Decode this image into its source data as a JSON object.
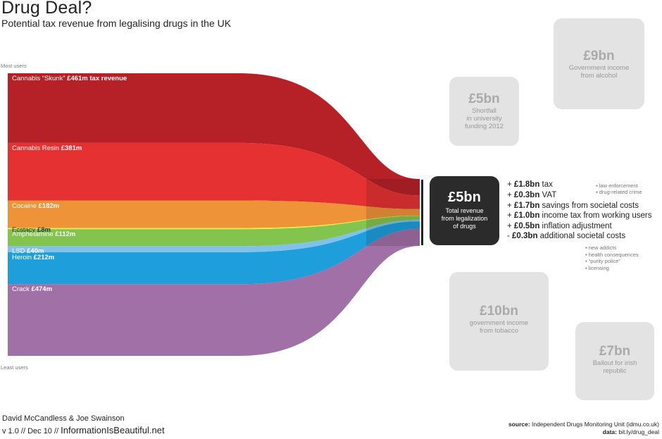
{
  "header": {
    "title": "Drug Deal?",
    "subtitle": "Potential tax revenue from legalising drugs in the UK"
  },
  "axis": {
    "top_label": "Most users",
    "bottom_label": "Least users"
  },
  "chart_data": {
    "type": "sankey",
    "flows": [
      {
        "label_pre": "Cannabis “Skunk” ",
        "label_bold": "£461m tax revenue",
        "value": 461,
        "color": "#b01018"
      },
      {
        "label_pre": "Cannabis Resin ",
        "label_bold": "£381m",
        "value": 381,
        "color": "#e42124"
      },
      {
        "label_pre": "Cocaine ",
        "label_bold": "£182m",
        "value": 182,
        "color": "#ee8b2a"
      },
      {
        "label_pre": "Ecstacy ",
        "label_bold": "£8m",
        "value": 8,
        "color": "#f5e62d"
      },
      {
        "label_pre": "Amphetamine ",
        "label_bold": "£112m",
        "value": 112,
        "color": "#79bf40"
      },
      {
        "label_pre": "LSD ",
        "label_bold": "£40m",
        "value": 40,
        "color": "#78bde6"
      },
      {
        "label_pre": "Heroin ",
        "label_bold": "£212m",
        "value": 212,
        "color": "#0d98d8"
      },
      {
        "label_pre": "Crack ",
        "label_bold": "£474m",
        "value": 474,
        "color": "#9a65a0"
      }
    ]
  },
  "total": {
    "amount": "£5bn",
    "description": [
      "Total revenue",
      "from legalization",
      "of drugs"
    ]
  },
  "breakdown": [
    {
      "sign": "+ ",
      "amount": "£1.8bn",
      "text": " tax"
    },
    {
      "sign": "+ ",
      "amount": "£0.3bn",
      "text": " VAT"
    },
    {
      "sign": "+ ",
      "amount": "£1.7bn",
      "text": " savings from societal costs"
    },
    {
      "sign": "+ ",
      "amount": "£1.0bn",
      "text": " income tax from working users"
    },
    {
      "sign": "+ ",
      "amount": "£0.5bn",
      "text": " inflation adjustment"
    },
    {
      "sign": "- ",
      "amount": "£0.3bn",
      "text": " additional societal costs"
    }
  ],
  "notes_savings": [
    "▪ law enforcement",
    "▪ drug-related crime"
  ],
  "notes_costs": [
    "▪ new addicts",
    "▪ health consequences",
    "▪ “purity police”",
    "▪ licensing"
  ],
  "comparisons": [
    {
      "id": "alcohol",
      "amount": "£9bn",
      "description": [
        "Government income",
        "from alcohol"
      ]
    },
    {
      "id": "university",
      "amount": "£5bn",
      "description": [
        "Shortfall",
        "in university",
        "funding 2012"
      ]
    },
    {
      "id": "tobacco",
      "amount": "£10bn",
      "description": [
        "government income",
        "from tobacco"
      ]
    },
    {
      "id": "ireland",
      "amount": "£7bn",
      "description": [
        "Bailout for irish",
        "republic"
      ]
    }
  ],
  "footer": {
    "authors": "David McCandless  & Joe Swainson",
    "version": "v 1.0 // Dec 10 // ",
    "site": "InformationIsBeautiful.net",
    "source_label": "source:",
    "source_text": " Independent Drugs Monitoring Unit (idmu.co.uk)",
    "data_label": "data:",
    "data_text": " bit.ly/drug_deal"
  },
  "colors": {
    "dark_box": "#2b2b2b",
    "grey_box": "#e3e3e3"
  }
}
